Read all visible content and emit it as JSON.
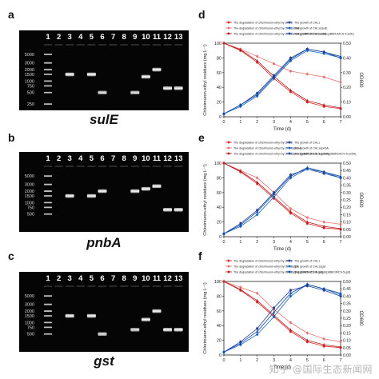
{
  "panels": {
    "a": "a",
    "b": "b",
    "c": "c",
    "d": "d",
    "e": "e",
    "f": "f"
  },
  "gels": [
    {
      "gene": "sulE",
      "lanes": [
        "1",
        "2",
        "3",
        "4",
        "5",
        "6",
        "7",
        "8",
        "9",
        "10",
        "11",
        "12",
        "13"
      ],
      "ladder": [
        "5000",
        "3000",
        "2000",
        "1500",
        "1000",
        "750",
        "500",
        "250"
      ],
      "bands": [
        {
          "lane": 3,
          "size_bp": 1500,
          "strength": 1.0
        },
        {
          "lane": 5,
          "size_bp": 1500,
          "strength": 1.0
        },
        {
          "lane": 6,
          "size_bp": 500,
          "strength": 0.9
        },
        {
          "lane": 9,
          "size_bp": 500,
          "strength": 0.9
        },
        {
          "lane": 10,
          "size_bp": 1300,
          "strength": 1.0
        },
        {
          "lane": 11,
          "size_bp": 2000,
          "strength": 1.0
        },
        {
          "lane": 12,
          "size_bp": 650,
          "strength": 1.0
        },
        {
          "lane": 13,
          "size_bp": 650,
          "strength": 1.0
        }
      ]
    },
    {
      "gene": "pnbA",
      "lanes": [
        "1",
        "2",
        "3",
        "4",
        "5",
        "6",
        "7",
        "8",
        "9",
        "10",
        "11",
        "12",
        "13"
      ],
      "ladder": [
        "5000",
        "3000",
        "2000",
        "1500",
        "1000",
        "750",
        "500"
      ],
      "bands": [
        {
          "lane": 3,
          "size_bp": 1500,
          "strength": 1.0
        },
        {
          "lane": 5,
          "size_bp": 1500,
          "strength": 1.0
        },
        {
          "lane": 6,
          "size_bp": 2000,
          "strength": 1.0
        },
        {
          "lane": 9,
          "size_bp": 2000,
          "strength": 1.0
        },
        {
          "lane": 10,
          "size_bp": 2300,
          "strength": 1.0
        },
        {
          "lane": 11,
          "size_bp": 2700,
          "strength": 1.0
        },
        {
          "lane": 12,
          "size_bp": 650,
          "strength": 1.0
        },
        {
          "lane": 13,
          "size_bp": 650,
          "strength": 1.0
        }
      ]
    },
    {
      "gene": "gst",
      "lanes": [
        "1",
        "2",
        "3",
        "4",
        "5",
        "6",
        "7",
        "8",
        "9",
        "10",
        "11",
        "12",
        "13"
      ],
      "ladder": [
        "5000",
        "3000",
        "2000",
        "1500",
        "1000",
        "750",
        "500"
      ],
      "bands": [
        {
          "lane": 3,
          "size_bp": 1500,
          "strength": 1.0
        },
        {
          "lane": 5,
          "size_bp": 1500,
          "strength": 1.0
        },
        {
          "lane": 6,
          "size_bp": 500,
          "strength": 0.9
        },
        {
          "lane": 9,
          "size_bp": 650,
          "strength": 0.9
        },
        {
          "lane": 10,
          "size_bp": 1200,
          "strength": 1.0
        },
        {
          "lane": 11,
          "size_bp": 2000,
          "strength": 1.0
        },
        {
          "lane": 12,
          "size_bp": 650,
          "strength": 1.0
        },
        {
          "lane": 13,
          "size_bp": 650,
          "strength": 1.0
        }
      ]
    }
  ],
  "chart_data": [
    {
      "type": "line",
      "panel": "d",
      "xlabel": "Time (d)",
      "ylabel": "Chlorimuron-ethyl residues (mg L⁻¹)",
      "y2label": "OD600",
      "x": [
        0,
        1,
        2,
        3,
        4,
        5,
        6,
        7
      ],
      "xlim": [
        0,
        7
      ],
      "ylim": [
        0,
        100
      ],
      "y2lim": [
        0,
        0.5
      ],
      "yticks": [
        0,
        20,
        40,
        60,
        80,
        100
      ],
      "y2ticks": [
        0.0,
        0.1,
        0.2,
        0.3,
        0.4,
        0.5
      ],
      "legend": [
        "The degradation of chlorimuron-ethyl by CHL1",
        "The degradation of chlorimuron-ethyl by CHL1ΔsulE",
        "The degradation of chlorimuron-ethyl by CHL1ΔsulE(pBBR1MCS-5-sulE)",
        "The growth of CHL1",
        "The growth of CHL1ΔsulE",
        "The growth of CHL1ΔsulE(pBBR1MCS-5-sulE)"
      ],
      "series": [
        {
          "name": "The degradation of chlorimuron-ethyl by CHL1",
          "axis": "left",
          "color": "#d62728",
          "values": [
            100,
            90,
            74,
            52,
            34,
            20,
            14,
            11
          ]
        },
        {
          "name": "The degradation of chlorimuron-ethyl by CHL1ΔsulE",
          "axis": "left",
          "color": "#e57373",
          "values": [
            100,
            92,
            82,
            72,
            62,
            58,
            54,
            47
          ]
        },
        {
          "name": "The degradation of chlorimuron-ethyl by CHL1ΔsulE(pBBR1MCS-5-sulE)",
          "axis": "left",
          "color": "#b71c1c",
          "values": [
            100,
            91,
            76,
            55,
            36,
            22,
            16,
            12
          ]
        },
        {
          "name": "The growth of CHL1",
          "axis": "right",
          "color": "#1f3a93",
          "values": [
            0.02,
            0.08,
            0.16,
            0.28,
            0.4,
            0.46,
            0.44,
            0.4
          ]
        },
        {
          "name": "The growth of CHL1ΔsulE",
          "axis": "right",
          "color": "#1565c0",
          "values": [
            0.02,
            0.07,
            0.14,
            0.26,
            0.38,
            0.45,
            0.43,
            0.4
          ]
        },
        {
          "name": "The growth of CHL1ΔsulE(pBBR1MCS-5-sulE)",
          "axis": "right",
          "color": "#0d47a1",
          "values": [
            0.02,
            0.08,
            0.15,
            0.27,
            0.39,
            0.46,
            0.44,
            0.41
          ]
        }
      ]
    },
    {
      "type": "line",
      "panel": "e",
      "xlabel": "Time (d)",
      "ylabel": "Chlorimuron-ethyl residues (mg L⁻¹)",
      "y2label": "OD600",
      "x": [
        0,
        1,
        2,
        3,
        4,
        5,
        6,
        7
      ],
      "xlim": [
        0,
        7
      ],
      "ylim": [
        0,
        100
      ],
      "y2lim": [
        0,
        0.5
      ],
      "yticks": [
        0,
        20,
        40,
        60,
        80,
        100
      ],
      "y2ticks": [
        0.0,
        0.05,
        0.1,
        0.15,
        0.2,
        0.25,
        0.3,
        0.35,
        0.4,
        0.45,
        0.5
      ],
      "legend": [
        "The degradation of chlorimuron-ethyl by CHL1",
        "The degradation of chlorimuron-ethyl by CHL1ΔpnbA",
        "The degradation of chlorimuron-ethyl by CHL1ΔpnbA(pBBR1MCS-5-pnbA)",
        "The growth of CHL1",
        "The growth of CHL1ΔpnbA",
        "The growth of CHL1ΔpnbA(pBBR1MCS-5-pnbA)"
      ],
      "series": [
        {
          "name": "The degradation of chlorimuron-ethyl by CHL1",
          "axis": "left",
          "color": "#d62728",
          "values": [
            100,
            88,
            72,
            52,
            32,
            18,
            12,
            10
          ]
        },
        {
          "name": "The degradation of chlorimuron-ethyl by CHL1ΔpnbA",
          "axis": "left",
          "color": "#e57373",
          "values": [
            100,
            90,
            80,
            60,
            38,
            26,
            20,
            17
          ]
        },
        {
          "name": "The degradation of chlorimuron-ethyl by CHL1ΔpnbA(pBBR1MCS-5-pnbA)",
          "axis": "left",
          "color": "#b71c1c",
          "values": [
            100,
            89,
            74,
            54,
            34,
            20,
            14,
            11
          ]
        },
        {
          "name": "The growth of CHL1",
          "axis": "right",
          "color": "#1f3a93",
          "values": [
            0.02,
            0.09,
            0.18,
            0.3,
            0.42,
            0.46,
            0.43,
            0.4
          ]
        },
        {
          "name": "The growth of CHL1ΔpnbA",
          "axis": "right",
          "color": "#1565c0",
          "values": [
            0.02,
            0.07,
            0.15,
            0.27,
            0.4,
            0.46,
            0.44,
            0.4
          ]
        },
        {
          "name": "The growth of CHL1ΔpnbA(pBBR1MCS-5-pnbA)",
          "axis": "right",
          "color": "#0d47a1",
          "values": [
            0.02,
            0.08,
            0.17,
            0.29,
            0.41,
            0.47,
            0.44,
            0.41
          ]
        }
      ]
    },
    {
      "type": "line",
      "panel": "f",
      "xlabel": "Time (d)",
      "ylabel": "Chlorimuron-ethyl residues (mg L⁻¹)",
      "y2label": "OD600",
      "x": [
        0,
        1,
        2,
        3,
        4,
        5,
        6,
        7
      ],
      "xlim": [
        0,
        7
      ],
      "ylim": [
        0,
        100
      ],
      "y2lim": [
        0,
        0.5
      ],
      "yticks": [
        0,
        20,
        40,
        60,
        80,
        100
      ],
      "y2ticks": [
        0.0,
        0.05,
        0.1,
        0.15,
        0.2,
        0.25,
        0.3,
        0.35,
        0.4,
        0.45,
        0.5
      ],
      "legend": [
        "The degradation of chlorimuron-ethyl by CHL1",
        "The degradation of chlorimuron-ethyl by CHL1Δgst",
        "The degradation of chlorimuron-ethyl by CHL1Δgst(pBBR1MCS-5-gst)",
        "The growth of CHL1",
        "The growth of CHL1Δgst",
        "The growth of CHL1Δgst(pBBR1MCS-5-gst)"
      ],
      "series": [
        {
          "name": "The degradation of chlorimuron-ethyl by CHL1",
          "axis": "left",
          "color": "#d62728",
          "values": [
            100,
            88,
            72,
            52,
            32,
            18,
            12,
            10
          ]
        },
        {
          "name": "The degradation of chlorimuron-ethyl by CHL1Δgst",
          "axis": "left",
          "color": "#e57373",
          "values": [
            100,
            92,
            84,
            62,
            44,
            30,
            22,
            18
          ]
        },
        {
          "name": "The degradation of chlorimuron-ethyl by CHL1Δgst(pBBR1MCS-5-gst)",
          "axis": "left",
          "color": "#b71c1c",
          "values": [
            100,
            89,
            74,
            54,
            34,
            20,
            14,
            11
          ]
        },
        {
          "name": "The growth of CHL1",
          "axis": "right",
          "color": "#1f3a93",
          "values": [
            0.02,
            0.09,
            0.18,
            0.32,
            0.44,
            0.47,
            0.44,
            0.4
          ]
        },
        {
          "name": "The growth of CHL1Δgst",
          "axis": "right",
          "color": "#1565c0",
          "values": [
            0.02,
            0.07,
            0.14,
            0.26,
            0.4,
            0.48,
            0.45,
            0.41
          ]
        },
        {
          "name": "The growth of CHL1Δgst(pBBR1MCS-5-gst)",
          "axis": "right",
          "color": "#0d47a1",
          "values": [
            0.02,
            0.08,
            0.16,
            0.29,
            0.42,
            0.48,
            0.45,
            0.42
          ]
        }
      ]
    }
  ],
  "watermark": "知乎 @国际生态新闻网"
}
